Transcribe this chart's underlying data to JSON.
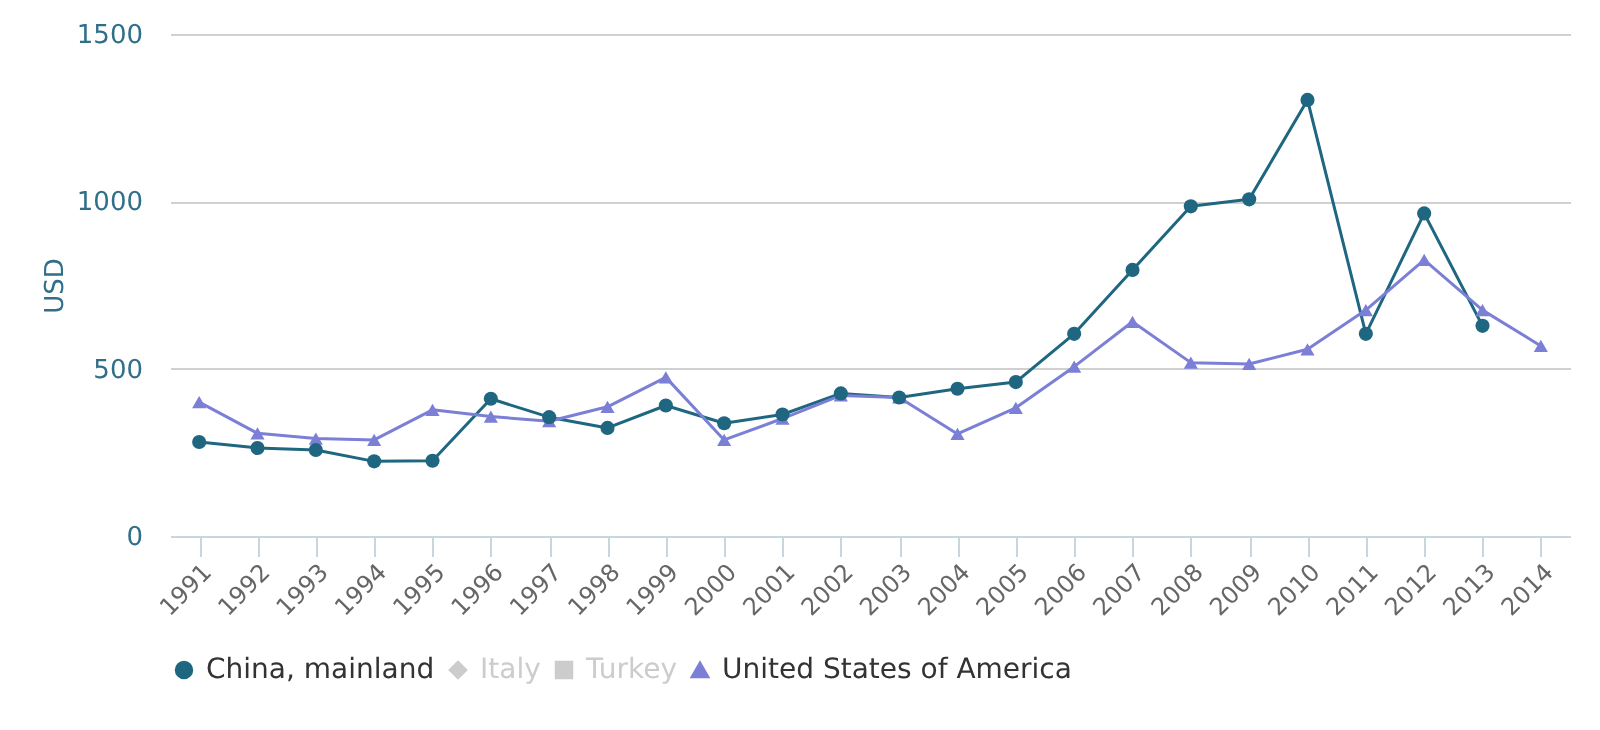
{
  "chart_data": {
    "type": "line",
    "ylabel": "USD",
    "categories": [
      "1991",
      "1992",
      "1993",
      "1994",
      "1995",
      "1996",
      "1997",
      "1998",
      "1999",
      "2000",
      "2001",
      "2002",
      "2003",
      "2004",
      "2005",
      "2006",
      "2007",
      "2008",
      "2009",
      "2010",
      "2011",
      "2012",
      "2013",
      "2014"
    ],
    "series": [
      {
        "name": "China, mainland",
        "color": "#1f6680",
        "marker": "circle",
        "values": [
          281,
          263,
          257,
          223,
          225,
          410,
          355,
          323,
          390,
          337,
          363,
          426,
          414,
          440,
          460,
          604,
          795,
          985,
          1006,
          1303,
          604,
          964,
          628,
          null
        ]
      },
      {
        "name": "Italy",
        "color": "#cccccc",
        "marker": "diamond",
        "values": [
          null,
          null,
          null,
          null,
          null,
          null,
          null,
          null,
          null,
          null,
          null,
          null,
          null,
          null,
          null,
          null,
          null,
          null,
          null,
          null,
          null,
          null,
          null,
          null
        ]
      },
      {
        "name": "Turkey",
        "color": "#cccccc",
        "marker": "square",
        "values": [
          null,
          null,
          null,
          null,
          null,
          null,
          null,
          null,
          null,
          null,
          null,
          null,
          null,
          null,
          null,
          null,
          null,
          null,
          null,
          null,
          null,
          null,
          null,
          null
        ]
      },
      {
        "name": "United States of America",
        "color": "#7b7fd6",
        "marker": "triangle",
        "values": [
          400,
          307,
          291,
          287,
          377,
          357,
          343,
          386,
          474,
          287,
          351,
          420,
          414,
          305,
          383,
          506,
          640,
          518,
          514,
          558,
          675,
          825,
          675,
          568
        ]
      }
    ],
    "ylim": [
      0,
      1500
    ],
    "yticks": [
      0,
      500,
      1000,
      1500
    ],
    "grid": "y",
    "legend": "bottom",
    "line_style": "solid"
  }
}
